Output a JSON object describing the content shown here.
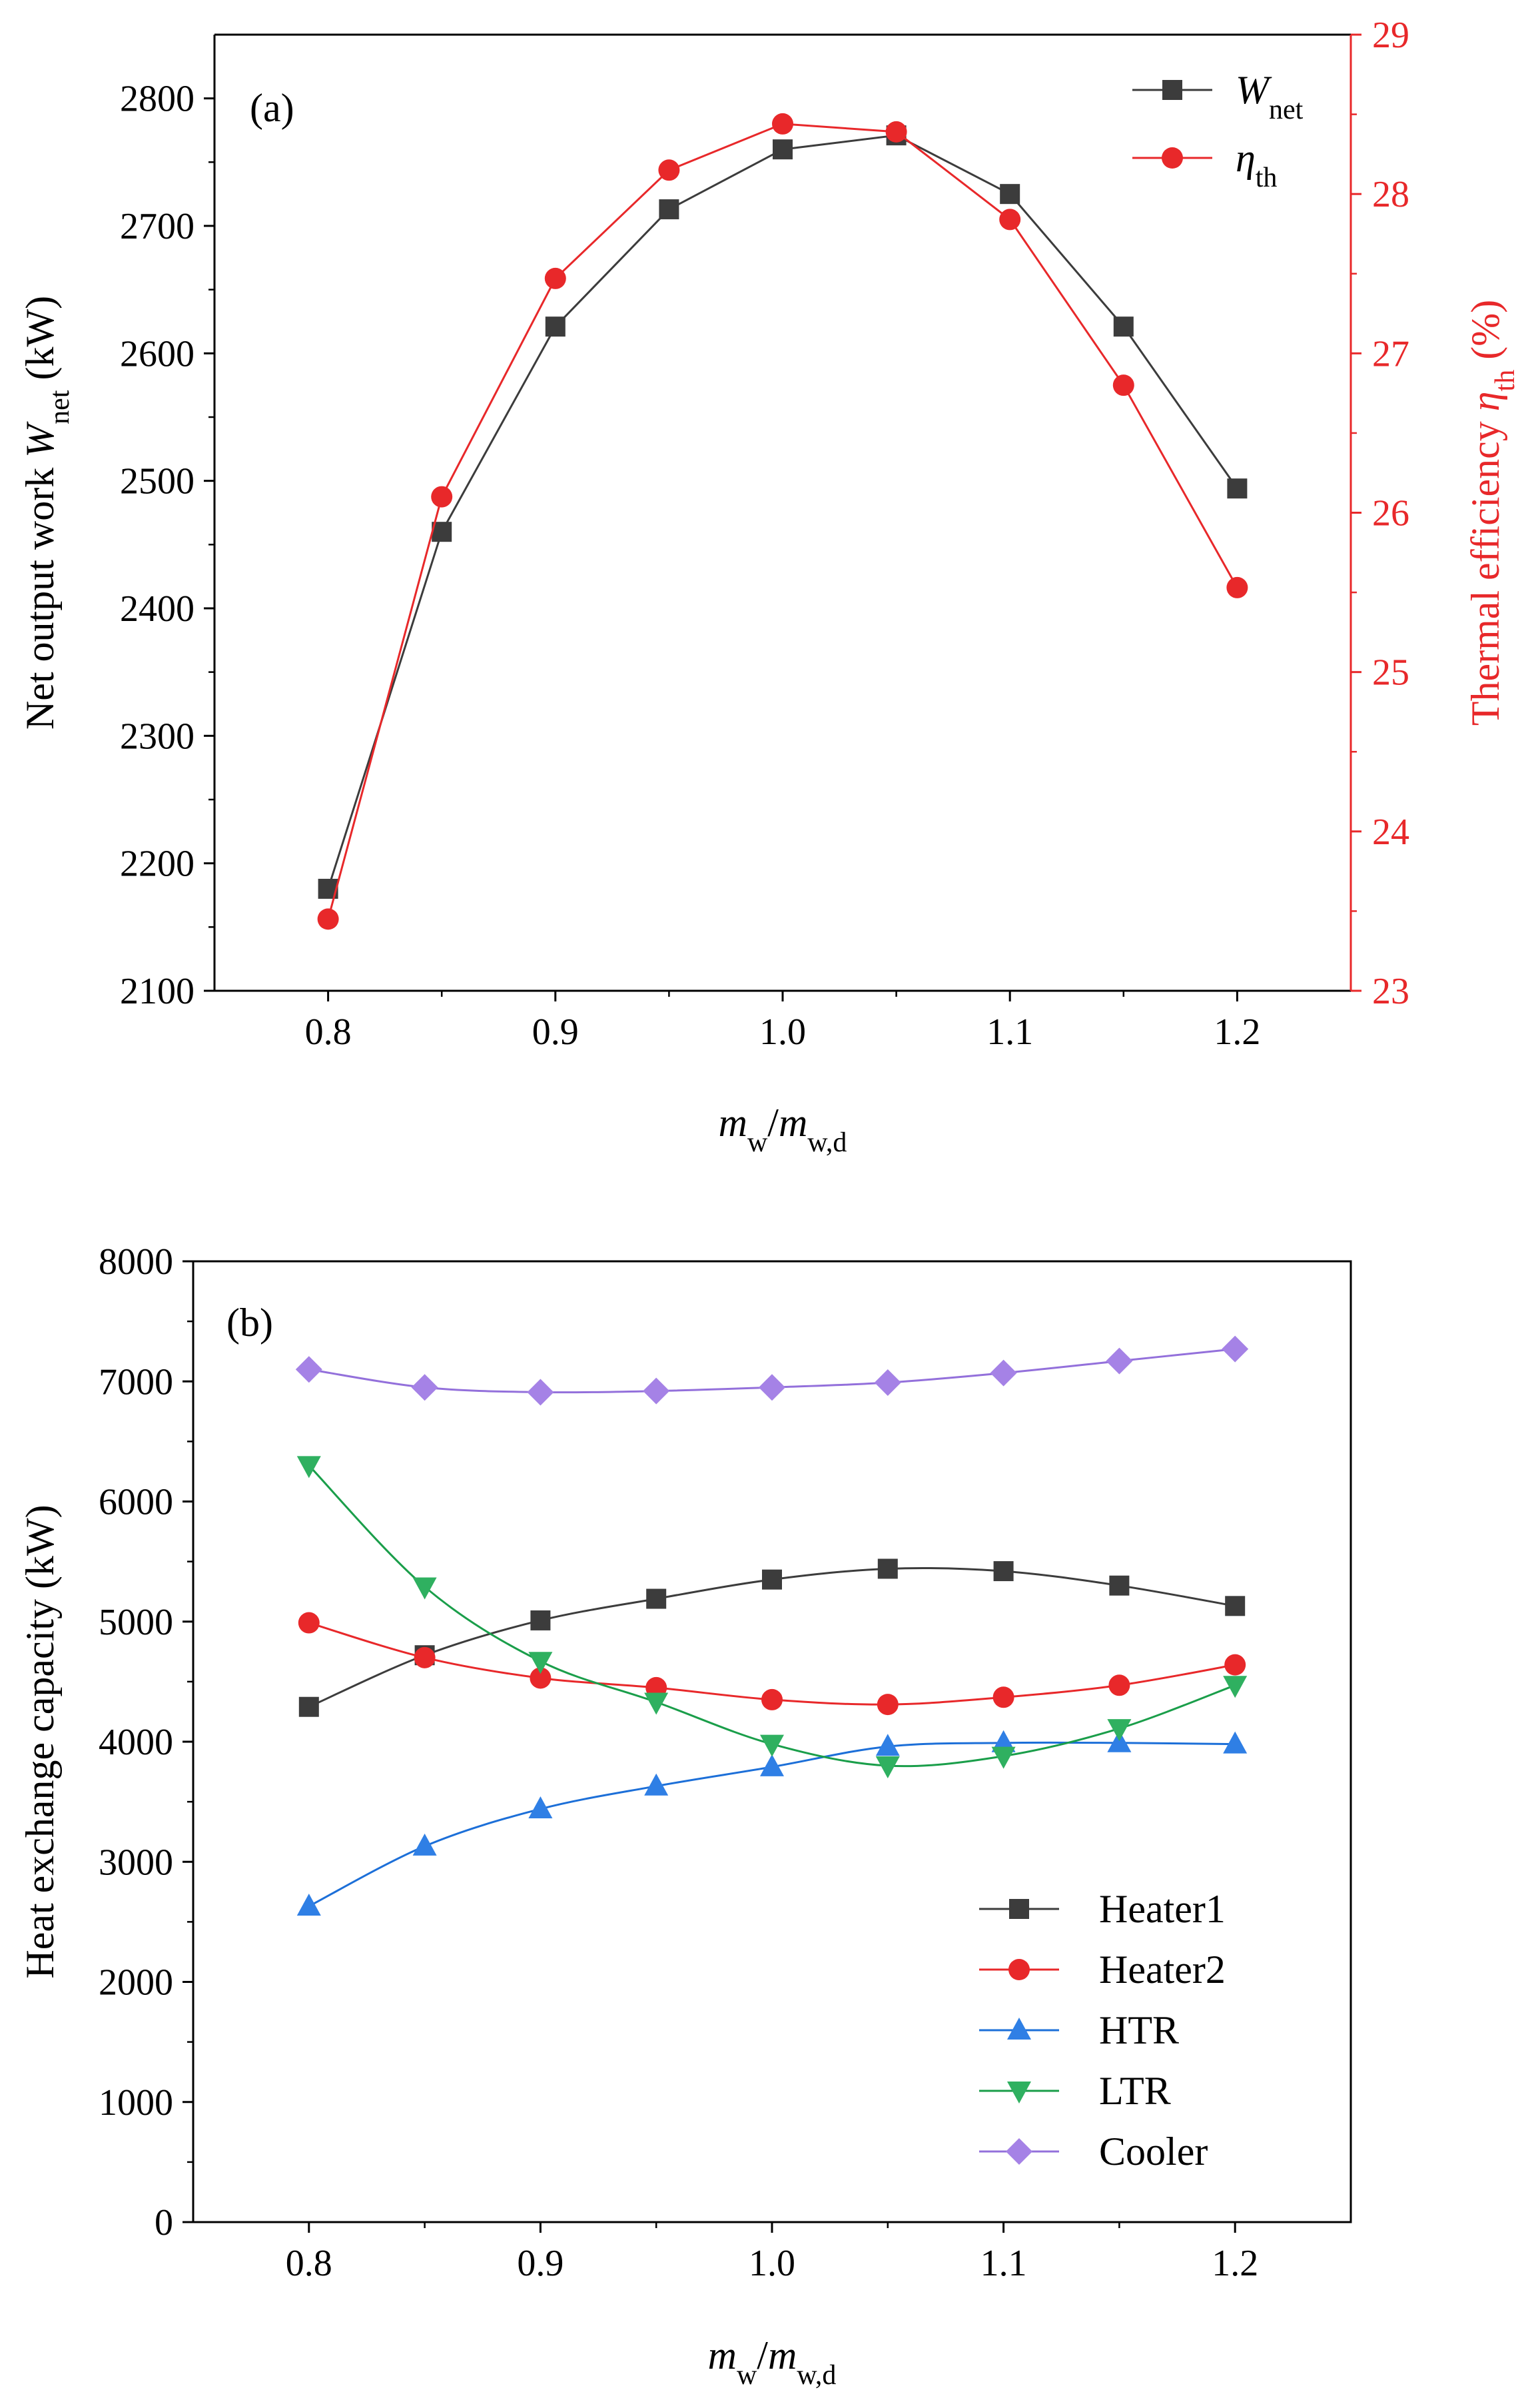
{
  "chart_data": [
    {
      "type": "line",
      "panel_label": "(a)",
      "x": [
        0.8,
        0.85,
        0.9,
        0.95,
        1.0,
        1.05,
        1.1,
        1.15,
        1.2
      ],
      "xlim": [
        0.75,
        1.25
      ],
      "xticks": [
        "0.8",
        "0.9",
        "1.0",
        "1.1",
        "1.2"
      ],
      "xlabel": {
        "main": "m",
        "sub": "w",
        "sep": "/",
        "main2": "m",
        "sub2": "w,d"
      },
      "ylim_left": [
        2100,
        2850
      ],
      "yticks_left": [
        "2100",
        "2200",
        "2300",
        "2400",
        "2500",
        "2600",
        "2700",
        "2800"
      ],
      "ylabel_left": {
        "text": "Net output work ",
        "var": "W",
        "sub": "net",
        "unit": " (kW)"
      },
      "ylim_right": [
        23,
        29
      ],
      "yticks_right": [
        "23",
        "24",
        "25",
        "26",
        "27",
        "28",
        "29"
      ],
      "ylabel_right": {
        "text": "Thermal efficiency ",
        "var": "η",
        "sub": "th",
        "unit": " (%)"
      },
      "series": [
        {
          "name": "W",
          "name_sub": "net",
          "axis": "left",
          "marker": "square",
          "color": "#3c3c3c",
          "values": [
            2180,
            2460,
            2621,
            2713,
            2760,
            2771,
            2725,
            2621,
            2494
          ]
        },
        {
          "name": "η",
          "name_sub": "th",
          "axis": "right",
          "marker": "circle",
          "color": "#e8282a",
          "values": [
            23.45,
            26.1,
            27.47,
            28.15,
            28.44,
            28.39,
            27.84,
            26.8,
            25.53
          ]
        }
      ],
      "legend_position": "top-right"
    },
    {
      "type": "line",
      "panel_label": "(b)",
      "x": [
        0.8,
        0.85,
        0.9,
        0.95,
        1.0,
        1.05,
        1.1,
        1.15,
        1.2
      ],
      "xlim": [
        0.75,
        1.25
      ],
      "xticks": [
        "0.8",
        "0.9",
        "1.0",
        "1.1",
        "1.2"
      ],
      "xlabel": {
        "main": "m",
        "sub": "w",
        "sep": "/",
        "main2": "m",
        "sub2": "w,d"
      },
      "ylim": [
        0,
        8000
      ],
      "yticks": [
        "0",
        "1000",
        "2000",
        "3000",
        "4000",
        "5000",
        "6000",
        "7000",
        "8000"
      ],
      "ylabel": "Heat exchange capacity (kW)",
      "series": [
        {
          "name": "Heater1",
          "marker": "square",
          "color": "#3c3c3c",
          "marker_color": "#3c3c3c",
          "values": [
            4290,
            4720,
            5010,
            5190,
            5350,
            5440,
            5420,
            5300,
            5130
          ]
        },
        {
          "name": "Heater2",
          "marker": "circle",
          "color": "#e8282a",
          "marker_color": "#e8282a",
          "values": [
            4990,
            4700,
            4530,
            4450,
            4350,
            4310,
            4370,
            4470,
            4640
          ]
        },
        {
          "name": "HTR",
          "marker": "triangle-up",
          "color": "#1c6fd8",
          "marker_color": "#2f7fe5",
          "values": [
            2630,
            3130,
            3440,
            3630,
            3790,
            3960,
            3990,
            3990,
            3980
          ]
        },
        {
          "name": "LTR",
          "marker": "triangle-down",
          "color": "#1a9e4a",
          "marker_color": "#2fb060",
          "values": [
            6300,
            5290,
            4670,
            4330,
            3980,
            3800,
            3880,
            4110,
            4470
          ]
        },
        {
          "name": "Cooler",
          "marker": "diamond",
          "color": "#9370db",
          "marker_color": "#a582e6",
          "values": [
            7100,
            6950,
            6910,
            6920,
            6950,
            6990,
            7070,
            7170,
            7270
          ]
        }
      ],
      "legend_position": "bottom-right"
    }
  ]
}
